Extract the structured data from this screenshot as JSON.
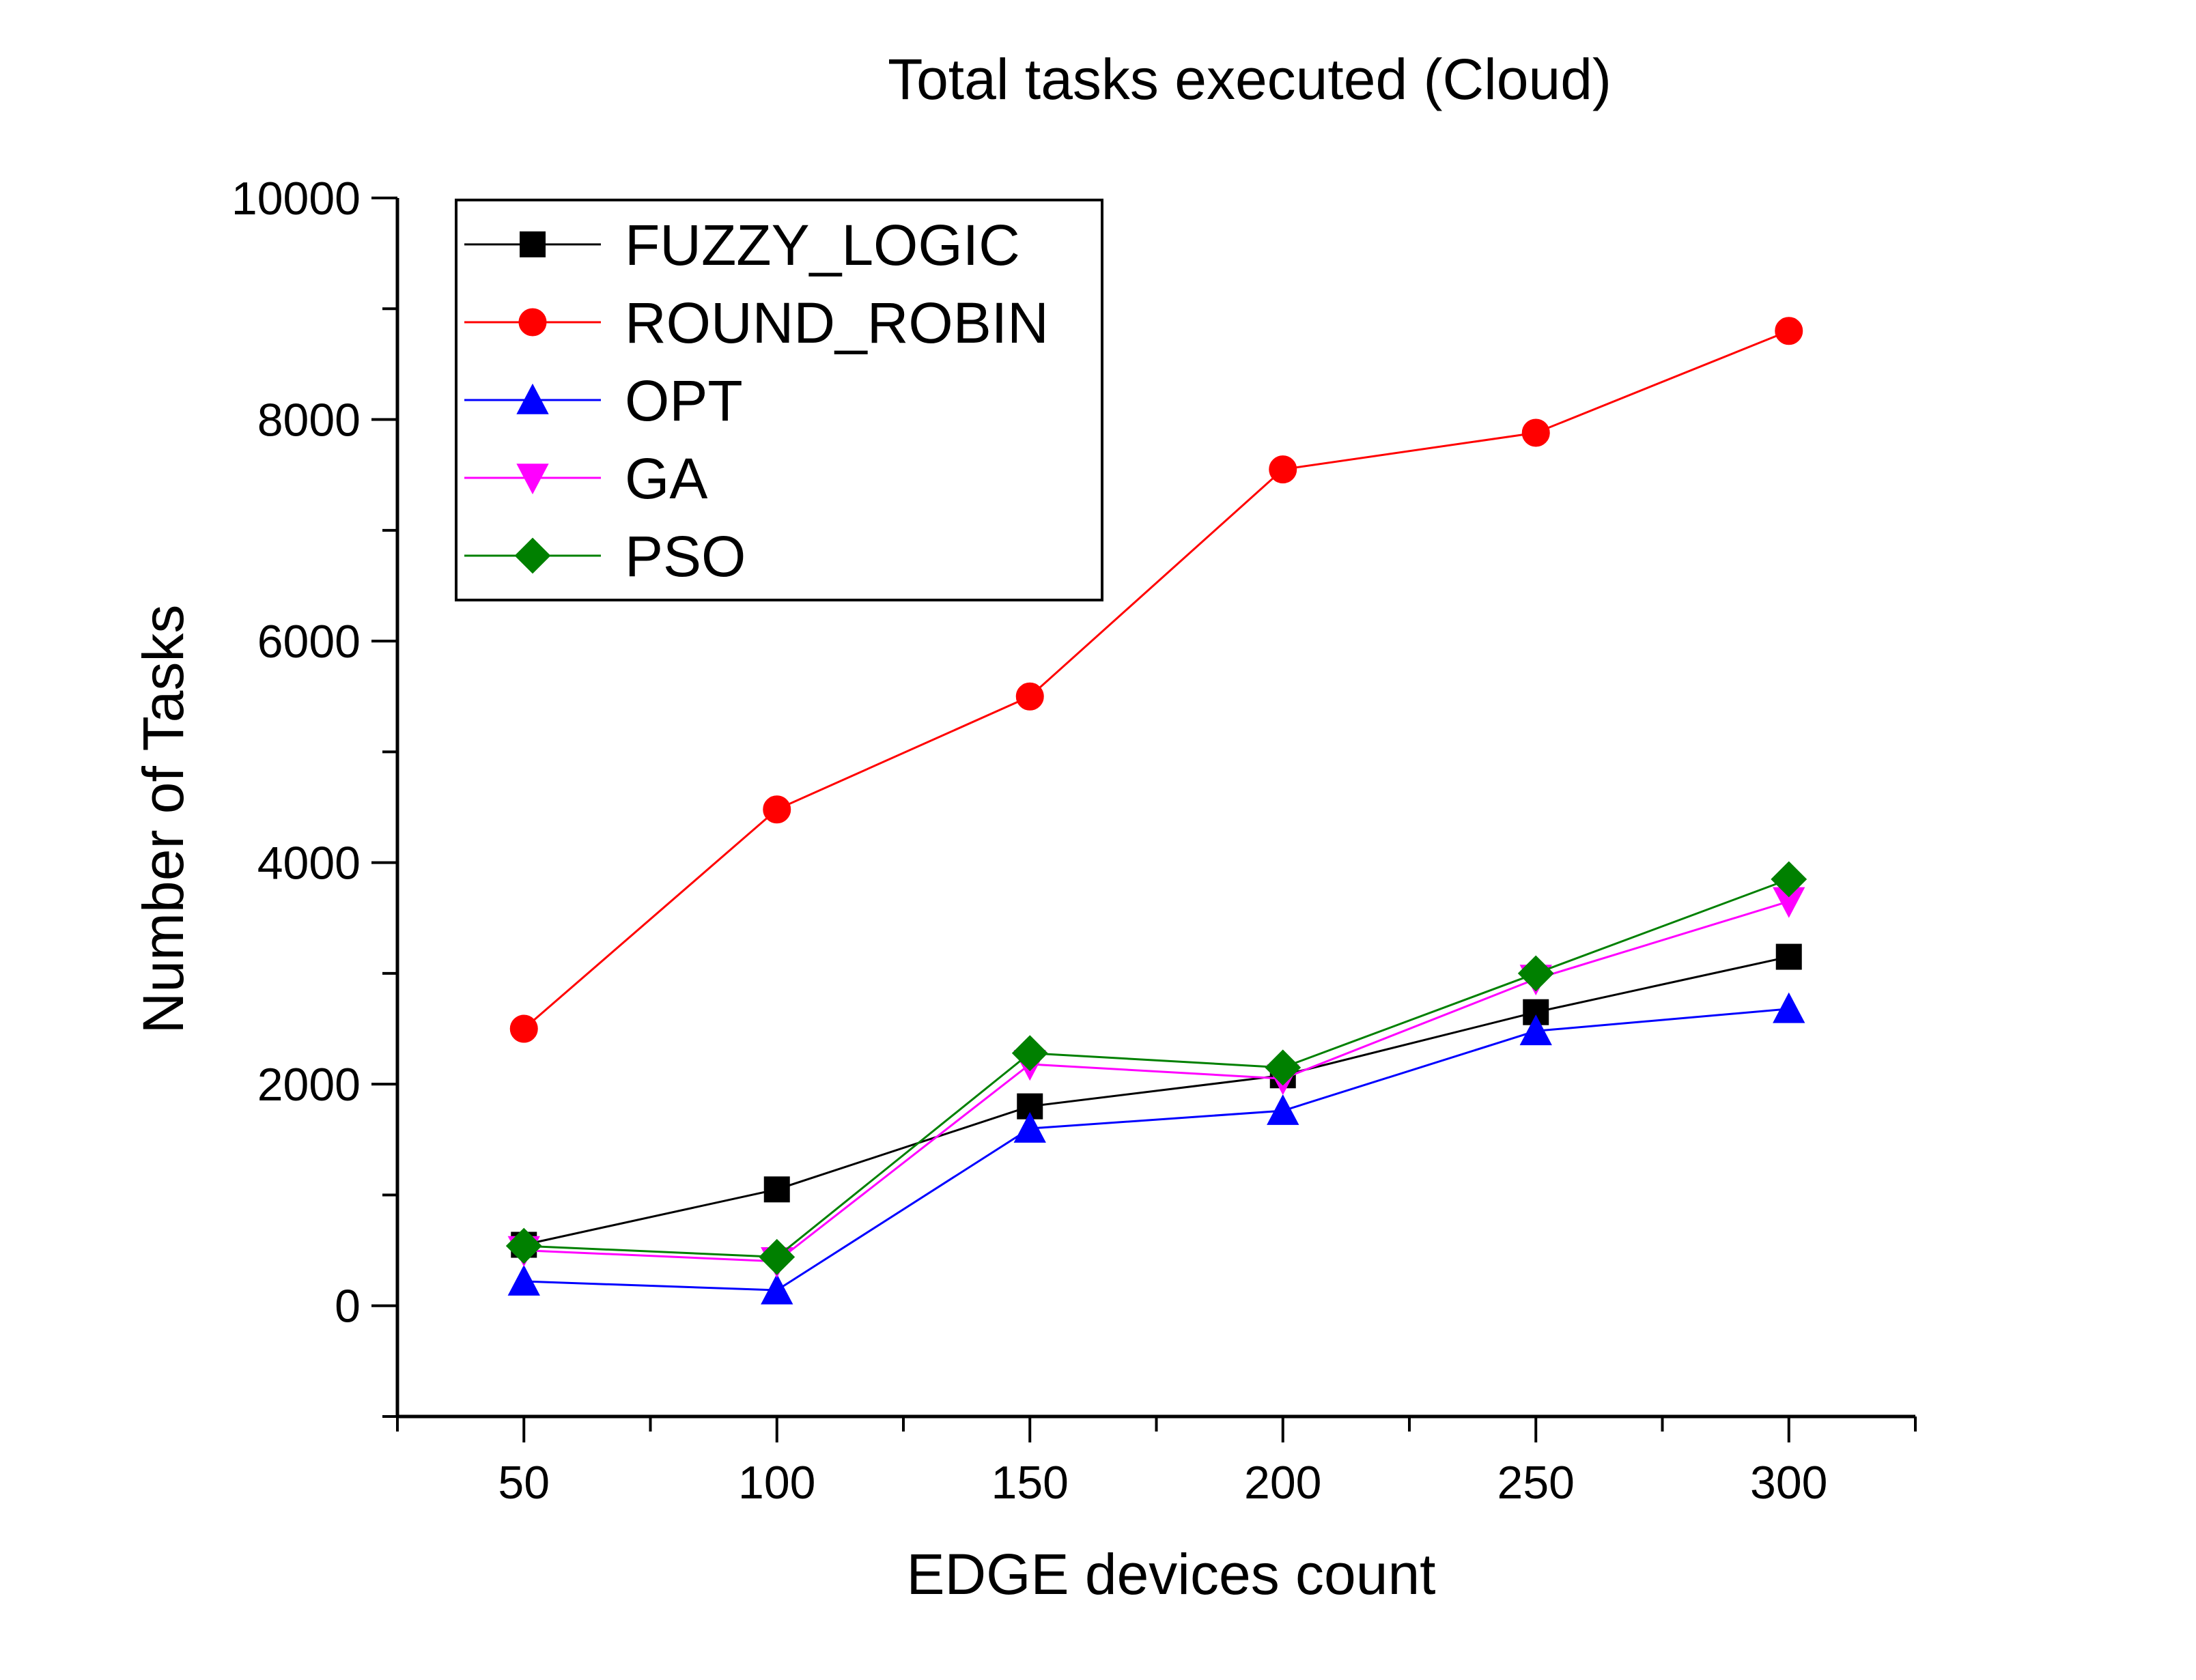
{
  "chart_data": {
    "type": "line",
    "title": "Total tasks executed (Cloud)",
    "xlabel": "EDGE devices count",
    "ylabel": "Number of Tasks",
    "x": [
      50,
      100,
      150,
      200,
      250,
      300
    ],
    "xlim": [
      25,
      325
    ],
    "ylim": [
      -1000,
      10000
    ],
    "xticks": [
      50,
      100,
      150,
      200,
      250,
      300
    ],
    "xtick_labels": [
      "50",
      "100",
      "150",
      "200",
      "250",
      "300"
    ],
    "yticks": [
      0,
      2000,
      4000,
      6000,
      8000,
      10000
    ],
    "ytick_labels": [
      "0",
      "2000",
      "4000",
      "6000",
      "8000",
      "10000"
    ],
    "grid": false,
    "legend_position": "top-left",
    "series": [
      {
        "name": "FUZZY_LOGIC",
        "color": "#000000",
        "marker": "square",
        "values": [
          550,
          1050,
          1800,
          2080,
          2650,
          3150
        ]
      },
      {
        "name": "ROUND_ROBIN",
        "color": "#ff0000",
        "marker": "circle",
        "values": [
          2500,
          4480,
          5500,
          7550,
          7880,
          8800
        ]
      },
      {
        "name": "OPT",
        "color": "#0000ff",
        "marker": "triangle-up",
        "values": [
          220,
          140,
          1600,
          1760,
          2480,
          2680
        ]
      },
      {
        "name": "GA",
        "color": "#ff00ff",
        "marker": "triangle-down",
        "values": [
          500,
          400,
          2180,
          2050,
          2950,
          3650
        ]
      },
      {
        "name": "PSO",
        "color": "#008000",
        "marker": "diamond",
        "values": [
          540,
          440,
          2280,
          2150,
          3000,
          3850
        ]
      }
    ]
  }
}
